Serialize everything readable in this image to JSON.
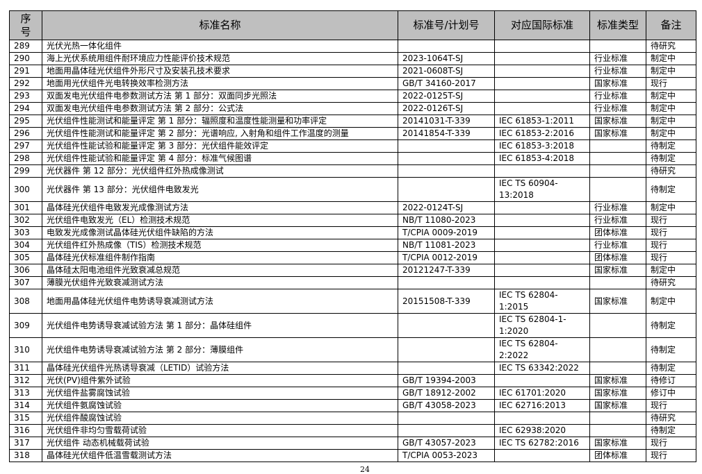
{
  "headers": {
    "seq": "序\n号",
    "name": "标准名称",
    "code": "标准号/计划号",
    "intl": "对应国际标准",
    "type": "标准类型",
    "note": "备注"
  },
  "rows": [
    {
      "seq": "289",
      "name": "光伏光热一体化组件",
      "code": "",
      "intl": "",
      "type": "",
      "note": "待研究"
    },
    {
      "seq": "290",
      "name": "海上光伏系统用组件耐环境应力性能评价技术规范",
      "code": "2023-1064T-SJ",
      "intl": "",
      "type": "行业标准",
      "note": "制定中"
    },
    {
      "seq": "291",
      "name": "地面用晶体硅光伏组件外形尺寸及安装孔技术要求",
      "code": "2021-0608T-SJ",
      "intl": "",
      "type": "行业标准",
      "note": "制定中"
    },
    {
      "seq": "292",
      "name": "地面用光伏组件光电转换效率检测方法",
      "code": "GB/T 34160-2017",
      "intl": "",
      "type": "国家标准",
      "note": "现行"
    },
    {
      "seq": "293",
      "name": "双面发电光伏组件电参数测试方法  第 1 部分：双面同步光照法",
      "code": "2022-0125T-SJ",
      "intl": "",
      "type": "行业标准",
      "note": "制定中"
    },
    {
      "seq": "294",
      "name": "双面发电光伏组件电参数测试方法  第 2 部分：公式法",
      "code": "2022-0126T-SJ",
      "intl": "",
      "type": "行业标准",
      "note": "制定中"
    },
    {
      "seq": "295",
      "name": "光伏组件性能测试和能量评定  第 1 部分：辐照度和温度性能测量和功率评定",
      "code": "20141031-T-339",
      "intl": "IEC 61853-1:2011",
      "type": "国家标准",
      "note": "制定中"
    },
    {
      "seq": "296",
      "name": "光伏组件性能测试和能量评定  第 2 部分：光谱响应, 入射角和组件工作温度的测量",
      "code": "20141854-T-339",
      "intl": "IEC 61853-2:2016",
      "type": "国家标准",
      "note": "制定中"
    },
    {
      "seq": "297",
      "name": "光伏组件性能试验和能量评定  第 3 部分：光伏组件能效评定",
      "code": "",
      "intl": "IEC 61853-3:2018",
      "type": "",
      "note": "待制定"
    },
    {
      "seq": "298",
      "name": "光伏组件性能试验和能量评定  第 4 部分：标准气候图谱",
      "code": "",
      "intl": "IEC 61853-4:2018",
      "type": "",
      "note": "待制定"
    },
    {
      "seq": "299",
      "name": "光伏器件 第 12 部分：光伏组件红外热成像测试",
      "code": "",
      "intl": "",
      "type": "",
      "note": "待研究"
    },
    {
      "seq": "300",
      "name": "光伏器件 第 13 部分：光伏组件电致发光",
      "code": "",
      "intl": "IEC TS 60904-13:2018",
      "type": "",
      "note": "待制定",
      "tall": true
    },
    {
      "seq": "301",
      "name": "晶体硅光伏组件电致发光成像测试方法",
      "code": "2022-0124T-SJ",
      "intl": "",
      "type": "行业标准",
      "note": "制定中"
    },
    {
      "seq": "302",
      "name": "光伏组件电致发光（EL）检测技术规范",
      "code": "NB/T 11080-2023",
      "intl": "",
      "type": "行业标准",
      "note": "现行"
    },
    {
      "seq": "303",
      "name": "电致发光成像测试晶体硅光伏组件缺陷的方法",
      "code": "T/CPIA 0009-2019",
      "intl": "",
      "type": "团体标准",
      "note": "现行"
    },
    {
      "seq": "304",
      "name": "光伏组件红外热成像（TIS）检测技术规范",
      "code": "NB/T 11081-2023",
      "intl": "",
      "type": "行业标准",
      "note": "现行"
    },
    {
      "seq": "305",
      "name": "晶体硅光伏标准组件制作指南",
      "code": "T/CPIA 0012-2019",
      "intl": "",
      "type": "团体标准",
      "note": "现行"
    },
    {
      "seq": "306",
      "name": "晶体硅太阳电池组件光致衰减总规范",
      "code": "20121247-T-339",
      "intl": "",
      "type": "国家标准",
      "note": "制定中"
    },
    {
      "seq": "307",
      "name": "薄膜光伏组件光致衰减测试方法",
      "code": "",
      "intl": "",
      "type": "",
      "note": "待研究"
    },
    {
      "seq": "308",
      "name": "地面用晶体硅光伏组件电势诱导衰减测试方法",
      "code": "20151508-T-339",
      "intl": "IEC TS 62804-1:2015",
      "type": "国家标准",
      "note": "制定中",
      "tall": true
    },
    {
      "seq": "309",
      "name": "光伏组件电势诱导衰减试验方法  第 1 部分：晶体硅组件",
      "code": "",
      "intl": "IEC TS 62804-1-1:2020",
      "type": "",
      "note": "待制定",
      "tall": true
    },
    {
      "seq": "310",
      "name": "光伏组件电势诱导衰减试验方法  第 2 部分：薄膜组件",
      "code": "",
      "intl": "IEC TS 62804-2:2022",
      "type": "",
      "note": "待制定",
      "tall": true
    },
    {
      "seq": "311",
      "name": "晶体硅光伏组件光热诱导衰减（LETID）试验方法",
      "code": "",
      "intl": "IEC TS 63342:2022",
      "type": "",
      "note": "待制定"
    },
    {
      "seq": "312",
      "name": "光伏(PV)组件紫外试验",
      "code": "GB/T 19394-2003",
      "intl": "",
      "type": "国家标准",
      "note": "待修订"
    },
    {
      "seq": "313",
      "name": "光伏组件盐雾腐蚀试验",
      "code": "GB/T 18912-2002",
      "intl": "IEC 61701:2020",
      "type": "国家标准",
      "note": "修订中"
    },
    {
      "seq": "314",
      "name": "光伏组件氨腐蚀试验",
      "code": "GB/T 43058-2023",
      "intl": "IEC 62716:2013",
      "type": "国家标准",
      "note": "现行"
    },
    {
      "seq": "315",
      "name": "光伏组件酸腐蚀试验",
      "code": "",
      "intl": "",
      "type": "",
      "note": "待研究"
    },
    {
      "seq": "316",
      "name": "光伏组件非均匀雪载荷试验",
      "code": "",
      "intl": "IEC 62938:2020",
      "type": "",
      "note": "待制定"
    },
    {
      "seq": "317",
      "name": "光伏组件  动态机械载荷试验",
      "code": "GB/T 43057-2023",
      "intl": "IEC TS 62782:2016",
      "type": "国家标准",
      "note": "现行"
    },
    {
      "seq": "318",
      "name": "晶体硅光伏组件低温雪载测试方法",
      "code": "T/CPIA 0053-2023",
      "intl": "",
      "type": "团体标准",
      "note": "现行"
    }
  ],
  "page_number": "24",
  "colors": {
    "header_bg": "#bfbfbf"
  }
}
